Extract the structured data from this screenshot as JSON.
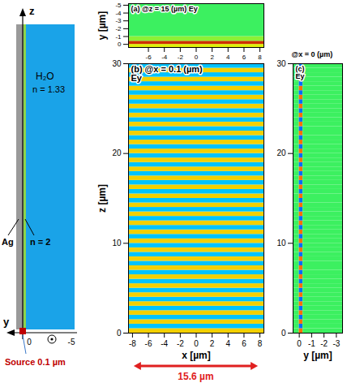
{
  "schematic": {
    "axis_labels": {
      "z": "z",
      "y": "y"
    },
    "y_ticks": [
      0,
      -5
    ],
    "medium": "H₂O",
    "medium_index": "n = 1.33",
    "metal": "Ag",
    "layer_index": "n = 2",
    "source": "Source 0.1 µm"
  },
  "chart_data": [
    {
      "type": "heatmap",
      "panel": "(a)",
      "title": "@z = 15 (µm)",
      "subtitle": "Ey",
      "ylabel": "y [µm]",
      "xlim": [
        -8.5,
        8.5
      ],
      "ylim": [
        0.4,
        -5.2
      ],
      "xticks": [
        -6,
        -4,
        -2,
        0,
        2,
        4,
        6,
        8
      ],
      "yticks": [
        -5,
        -4,
        -3,
        -2,
        -1,
        0
      ],
      "color_range": [
        -1,
        1
      ],
      "cells": {
        "x_edges": [
          -8.5,
          8.5
        ],
        "y_edges": [
          0.4,
          0,
          -0.4,
          -1,
          -5.2
        ],
        "values": [
          [
            0.3
          ],
          [
            0.8
          ],
          [
            0.15
          ],
          [
            0
          ]
        ]
      }
    },
    {
      "type": "heatmap",
      "panel": "(b)",
      "title": "@x = 0.1 (µm)",
      "subtitle": "Ey",
      "xlabel": "x [µm]",
      "ylabel": "z [µm]",
      "xlim": [
        -8.5,
        8.5
      ],
      "ylim": [
        0,
        30
      ],
      "xticks": [
        -8,
        -6,
        -4,
        -2,
        0,
        2,
        4,
        6,
        8
      ],
      "yticks": [
        0,
        10,
        20,
        30
      ],
      "color_range": [
        -1,
        1
      ],
      "scale_bar": {
        "label": "15.6 µm",
        "x": [
          -7.8,
          7.8
        ]
      },
      "cells": {
        "x_edges": [
          -8.5,
          8.5
        ],
        "y_edges": [
          0,
          0.5,
          1,
          1.5,
          2,
          2.5,
          3,
          3.5,
          4,
          4.5,
          5,
          5.5,
          6,
          6.5,
          7,
          7.5,
          8,
          8.5,
          9,
          9.5,
          10,
          10.5,
          11,
          11.5,
          12,
          12.5,
          13,
          13.5,
          14,
          14.5,
          15,
          15.5,
          16,
          16.5,
          17,
          17.5,
          18,
          18.5,
          19,
          19.5,
          20,
          20.5,
          21,
          21.5,
          22,
          22.5,
          23,
          23.5,
          24,
          24.5,
          25,
          25.5,
          26,
          26.5,
          27,
          27.5,
          28,
          28.5,
          29,
          29.5,
          30
        ],
        "values": [
          [
            0.4
          ],
          [
            -0.4
          ],
          [
            0.4
          ],
          [
            -0.4
          ],
          [
            0.4
          ],
          [
            -0.4
          ],
          [
            0.4
          ],
          [
            -0.4
          ],
          [
            0.4
          ],
          [
            -0.4
          ],
          [
            0.4
          ],
          [
            -0.4
          ],
          [
            0.4
          ],
          [
            -0.4
          ],
          [
            0.4
          ],
          [
            -0.4
          ],
          [
            0.4
          ],
          [
            -0.4
          ],
          [
            0.4
          ],
          [
            -0.4
          ],
          [
            0.4
          ],
          [
            -0.4
          ],
          [
            0.4
          ],
          [
            -0.4
          ],
          [
            0.4
          ],
          [
            -0.4
          ],
          [
            0.4
          ],
          [
            -0.4
          ],
          [
            0.4
          ],
          [
            -0.4
          ],
          [
            0.4
          ],
          [
            -0.4
          ],
          [
            0.4
          ],
          [
            -0.4
          ],
          [
            0.4
          ],
          [
            -0.4
          ],
          [
            0.4
          ],
          [
            -0.4
          ],
          [
            0.4
          ],
          [
            -0.4
          ],
          [
            0.4
          ],
          [
            -0.4
          ],
          [
            0.4
          ],
          [
            -0.4
          ],
          [
            0.4
          ],
          [
            -0.4
          ],
          [
            0.4
          ],
          [
            -0.4
          ],
          [
            0.4
          ],
          [
            -0.4
          ],
          [
            0.4
          ],
          [
            -0.4
          ],
          [
            0.4
          ],
          [
            -0.4
          ],
          [
            0.4
          ],
          [
            -0.4
          ],
          [
            0.4
          ],
          [
            -0.4
          ],
          [
            0.4
          ],
          [
            -0.4
          ]
        ]
      }
    },
    {
      "type": "heatmap",
      "panel": "(c)",
      "title": "@x = 0 (µm)",
      "subtitle": "Ey",
      "xlabel": "y [µm]",
      "xlim": [
        0.5,
        -3.5
      ],
      "ylim": [
        0,
        30
      ],
      "xticks": [
        0,
        -1,
        -2,
        -3
      ],
      "yticks": [
        0,
        10,
        20,
        30
      ],
      "color_range": [
        -1,
        1
      ],
      "cells": {
        "x_edges": [
          0.5,
          0,
          -0.3,
          -3.5
        ],
        "y_edges": [
          0,
          0.5,
          1,
          1.5,
          2,
          2.5,
          3,
          3.5,
          4,
          4.5,
          5,
          5.5,
          6,
          6.5,
          7,
          7.5,
          8,
          8.5,
          9,
          9.5,
          10,
          10.5,
          11,
          11.5,
          12,
          12.5,
          13,
          13.5,
          14,
          14.5,
          15,
          15.5,
          16,
          16.5,
          17,
          17.5,
          18,
          18.5,
          19,
          19.5,
          20,
          20.5,
          21,
          21.5,
          22,
          22.5,
          23,
          23.5,
          24,
          24.5,
          25,
          25.5,
          26,
          26.5,
          27,
          27.5,
          28,
          28.5,
          29,
          29.5,
          30
        ],
        "values": [
          [
            0,
            0.6,
            0
          ],
          [
            0,
            -0.6,
            0
          ],
          [
            0,
            0.6,
            0
          ],
          [
            0,
            -0.6,
            0
          ],
          [
            0,
            0.6,
            0
          ],
          [
            0,
            -0.6,
            0
          ],
          [
            0,
            0.6,
            0
          ],
          [
            0,
            -0.6,
            0
          ],
          [
            0,
            0.6,
            0
          ],
          [
            0,
            -0.6,
            0
          ],
          [
            0,
            0.6,
            0
          ],
          [
            0,
            -0.6,
            0
          ],
          [
            0,
            0.6,
            0
          ],
          [
            0,
            -0.6,
            0
          ],
          [
            0,
            0.6,
            0
          ],
          [
            0,
            -0.6,
            0
          ],
          [
            0,
            0.6,
            0
          ],
          [
            0,
            -0.6,
            0
          ],
          [
            0,
            0.6,
            0
          ],
          [
            0,
            -0.6,
            0
          ],
          [
            0,
            0.6,
            0
          ],
          [
            0,
            -0.6,
            0
          ],
          [
            0,
            0.6,
            0
          ],
          [
            0,
            -0.6,
            0
          ],
          [
            0,
            0.6,
            0
          ],
          [
            0,
            -0.6,
            0
          ],
          [
            0,
            0.6,
            0
          ],
          [
            0,
            -0.6,
            0
          ],
          [
            0,
            0.6,
            0
          ],
          [
            0,
            -0.6,
            0
          ],
          [
            0,
            0.6,
            0
          ],
          [
            0,
            -0.6,
            0
          ],
          [
            0,
            0.6,
            0
          ],
          [
            0,
            -0.6,
            0
          ],
          [
            0,
            0.6,
            0
          ],
          [
            0,
            -0.6,
            0
          ],
          [
            0,
            0.6,
            0
          ],
          [
            0,
            -0.6,
            0
          ],
          [
            0,
            0.6,
            0
          ],
          [
            0,
            -0.6,
            0
          ],
          [
            0,
            0.6,
            0
          ],
          [
            0,
            -0.6,
            0
          ],
          [
            0,
            0.6,
            0
          ],
          [
            0,
            -0.6,
            0
          ],
          [
            0,
            0.6,
            0
          ],
          [
            0,
            -0.6,
            0
          ],
          [
            0,
            0.6,
            0
          ],
          [
            0,
            -0.6,
            0
          ],
          [
            0,
            0.6,
            0
          ],
          [
            0,
            -0.6,
            0
          ],
          [
            0,
            0.6,
            0
          ],
          [
            0,
            -0.6,
            0
          ],
          [
            0,
            0.6,
            0
          ],
          [
            0,
            -0.6,
            0
          ],
          [
            0,
            0.6,
            0
          ],
          [
            0,
            -0.6,
            0
          ],
          [
            0,
            0.6,
            0
          ],
          [
            0,
            -0.6,
            0
          ],
          [
            0,
            0.6,
            0
          ],
          [
            0,
            -0.6,
            0
          ]
        ]
      }
    }
  ]
}
